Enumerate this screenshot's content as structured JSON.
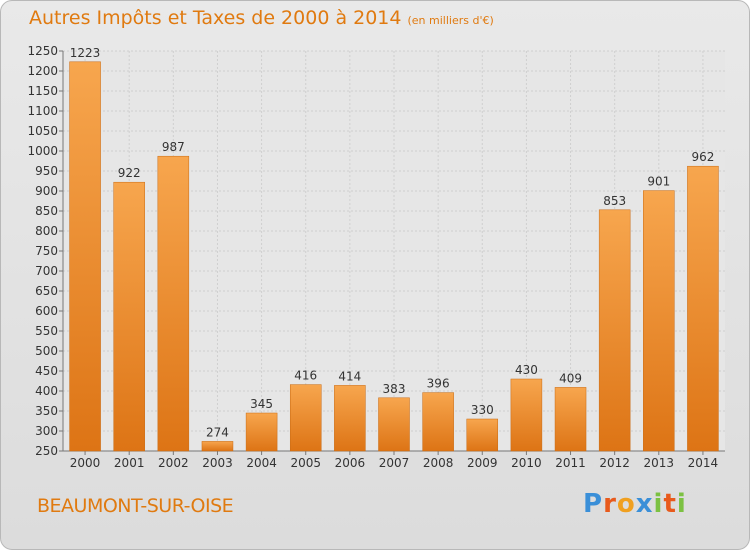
{
  "chart_data": {
    "type": "bar",
    "title": "Autres Impôts et Taxes de 2000 à 2014",
    "subtitle": "(en milliers d'€)",
    "categories": [
      "2000",
      "2001",
      "2002",
      "2003",
      "2004",
      "2005",
      "2006",
      "2007",
      "2008",
      "2009",
      "2010",
      "2011",
      "2012",
      "2013",
      "2014"
    ],
    "values": [
      1223,
      922,
      987,
      274,
      345,
      416,
      414,
      383,
      396,
      330,
      430,
      409,
      853,
      901,
      962
    ],
    "ylim": [
      250,
      1250
    ],
    "yticks": [
      250,
      300,
      350,
      400,
      450,
      500,
      550,
      600,
      650,
      700,
      750,
      800,
      850,
      900,
      950,
      1000,
      1050,
      1100,
      1150,
      1200,
      1250
    ],
    "grid": true,
    "xlabel": "",
    "ylabel": ""
  },
  "location": "BEAUMONT-SUR-OISE",
  "logo": {
    "text": "Proxiti",
    "letters": [
      "P",
      "r",
      "o",
      "x",
      "i",
      "t",
      "i"
    ],
    "colors": [
      "#3a8fd8",
      "#e85a1c",
      "#f0a020",
      "#3a8fd8",
      "#7cc142",
      "#e85a1c",
      "#7cc142"
    ]
  },
  "colors": {
    "bar_top": "#f7a64e",
    "bar_bottom": "#dd7415",
    "accent": "#e07a10"
  }
}
